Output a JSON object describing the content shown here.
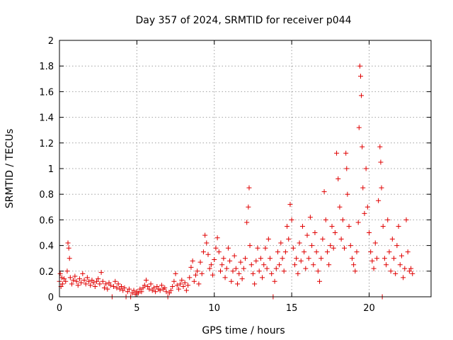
{
  "chart_data": {
    "type": "scatter",
    "title": "Day 357 of 2024, SRMTID for receiver p044",
    "xlabel": "GPS time / hours",
    "ylabel": "SRMTID / TECUs",
    "xlim": [
      0,
      24
    ],
    "ylim": [
      0,
      2
    ],
    "xticks": [
      0,
      5,
      10,
      15,
      20
    ],
    "xtick_labels": [
      "0",
      "5",
      "10",
      "15",
      "20"
    ],
    "yticks": [
      0,
      0.2,
      0.4,
      0.6,
      0.8,
      1,
      1.2,
      1.4,
      1.6,
      1.8,
      2
    ],
    "ytick_labels": [
      "0",
      "0.2",
      "0.4",
      "0.6",
      "0.8",
      "1",
      "1.2",
      "1.4",
      "1.6",
      "1.8",
      "2"
    ],
    "grid": true,
    "marker": "+",
    "color": "#e00000",
    "series": [
      {
        "name": "SRMTID",
        "points": [
          [
            0.0,
            0.12
          ],
          [
            0.05,
            0.18
          ],
          [
            0.1,
            0.08
          ],
          [
            0.15,
            0.15
          ],
          [
            0.2,
            0.1
          ],
          [
            0.3,
            0.14
          ],
          [
            0.4,
            0.12
          ],
          [
            0.5,
            0.2
          ],
          [
            0.55,
            0.42
          ],
          [
            0.6,
            0.38
          ],
          [
            0.65,
            0.3
          ],
          [
            0.7,
            0.15
          ],
          [
            0.8,
            0.1
          ],
          [
            0.9,
            0.13
          ],
          [
            1.0,
            0.16
          ],
          [
            1.1,
            0.12
          ],
          [
            1.2,
            0.09
          ],
          [
            1.3,
            0.14
          ],
          [
            1.4,
            0.11
          ],
          [
            1.5,
            0.18
          ],
          [
            1.6,
            0.13
          ],
          [
            1.7,
            0.1
          ],
          [
            1.8,
            0.15
          ],
          [
            1.9,
            0.12
          ],
          [
            2.0,
            0.09
          ],
          [
            2.1,
            0.13
          ],
          [
            2.2,
            0.11
          ],
          [
            2.3,
            0.08
          ],
          [
            2.4,
            0.12
          ],
          [
            2.5,
            0.14
          ],
          [
            2.6,
            0.1
          ],
          [
            2.7,
            0.19
          ],
          [
            2.8,
            0.12
          ],
          [
            2.9,
            0.07
          ],
          [
            3.0,
            0.1
          ],
          [
            3.1,
            0.06
          ],
          [
            3.2,
            0.11
          ],
          [
            3.3,
            0.09
          ],
          [
            3.4,
            0.0
          ],
          [
            3.5,
            0.08
          ],
          [
            3.6,
            0.12
          ],
          [
            3.7,
            0.07
          ],
          [
            3.8,
            0.1
          ],
          [
            3.9,
            0.06
          ],
          [
            4.0,
            0.08
          ],
          [
            4.1,
            0.05
          ],
          [
            4.2,
            0.07
          ],
          [
            4.3,
            0.0
          ],
          [
            4.4,
            0.04
          ],
          [
            4.5,
            0.06
          ],
          [
            4.6,
            0.0
          ],
          [
            4.7,
            0.03
          ],
          [
            4.8,
            0.05
          ],
          [
            4.9,
            0.02
          ],
          [
            5.0,
            0.04
          ],
          [
            5.1,
            0.03
          ],
          [
            5.2,
            0.06
          ],
          [
            5.3,
            0.04
          ],
          [
            5.4,
            0.07
          ],
          [
            5.5,
            0.09
          ],
          [
            5.6,
            0.13
          ],
          [
            5.7,
            0.08
          ],
          [
            5.8,
            0.06
          ],
          [
            5.9,
            0.1
          ],
          [
            6.0,
            0.05
          ],
          [
            6.1,
            0.07
          ],
          [
            6.2,
            0.04
          ],
          [
            6.3,
            0.08
          ],
          [
            6.4,
            0.06
          ],
          [
            6.5,
            0.05
          ],
          [
            6.6,
            0.09
          ],
          [
            6.7,
            0.06
          ],
          [
            6.8,
            0.07
          ],
          [
            6.9,
            0.04
          ],
          [
            7.0,
            0.0
          ],
          [
            7.1,
            0.03
          ],
          [
            7.2,
            0.05
          ],
          [
            7.3,
            0.08
          ],
          [
            7.4,
            0.12
          ],
          [
            7.5,
            0.18
          ],
          [
            7.6,
            0.09
          ],
          [
            7.7,
            0.06
          ],
          [
            7.8,
            0.1
          ],
          [
            7.9,
            0.13
          ],
          [
            8.0,
            0.08
          ],
          [
            8.1,
            0.11
          ],
          [
            8.2,
            0.05
          ],
          [
            8.3,
            0.09
          ],
          [
            8.4,
            0.15
          ],
          [
            8.5,
            0.23
          ],
          [
            8.6,
            0.28
          ],
          [
            8.7,
            0.12
          ],
          [
            8.8,
            0.17
          ],
          [
            8.9,
            0.2
          ],
          [
            9.0,
            0.1
          ],
          [
            9.1,
            0.27
          ],
          [
            9.2,
            0.18
          ],
          [
            9.3,
            0.35
          ],
          [
            9.4,
            0.48
          ],
          [
            9.5,
            0.42
          ],
          [
            9.6,
            0.33
          ],
          [
            9.7,
            0.22
          ],
          [
            9.8,
            0.25
          ],
          [
            9.9,
            0.17
          ],
          [
            10.0,
            0.29
          ],
          [
            10.1,
            0.38
          ],
          [
            10.2,
            0.46
          ],
          [
            10.3,
            0.35
          ],
          [
            10.4,
            0.2
          ],
          [
            10.5,
            0.25
          ],
          [
            10.6,
            0.3
          ],
          [
            10.7,
            0.15
          ],
          [
            10.8,
            0.22
          ],
          [
            10.9,
            0.38
          ],
          [
            11.0,
            0.28
          ],
          [
            11.1,
            0.12
          ],
          [
            11.2,
            0.2
          ],
          [
            11.3,
            0.32
          ],
          [
            11.4,
            0.22
          ],
          [
            11.5,
            0.1
          ],
          [
            11.6,
            0.18
          ],
          [
            11.7,
            0.27
          ],
          [
            11.8,
            0.14
          ],
          [
            11.9,
            0.22
          ],
          [
            12.0,
            0.3
          ],
          [
            12.1,
            0.58
          ],
          [
            12.2,
            0.7
          ],
          [
            12.25,
            0.85
          ],
          [
            12.3,
            0.4
          ],
          [
            12.4,
            0.25
          ],
          [
            12.5,
            0.18
          ],
          [
            12.6,
            0.1
          ],
          [
            12.7,
            0.28
          ],
          [
            12.8,
            0.38
          ],
          [
            12.9,
            0.2
          ],
          [
            13.0,
            0.3
          ],
          [
            13.1,
            0.15
          ],
          [
            13.2,
            0.25
          ],
          [
            13.3,
            0.38
          ],
          [
            13.4,
            0.22
          ],
          [
            13.5,
            0.45
          ],
          [
            13.6,
            0.3
          ],
          [
            13.7,
            0.18
          ],
          [
            13.8,
            0.0
          ],
          [
            13.9,
            0.12
          ],
          [
            14.0,
            0.22
          ],
          [
            14.1,
            0.35
          ],
          [
            14.2,
            0.25
          ],
          [
            14.3,
            0.42
          ],
          [
            14.4,
            0.3
          ],
          [
            14.5,
            0.2
          ],
          [
            14.6,
            0.35
          ],
          [
            14.7,
            0.55
          ],
          [
            14.8,
            0.45
          ],
          [
            14.9,
            0.72
          ],
          [
            15.0,
            0.6
          ],
          [
            15.1,
            0.38
          ],
          [
            15.2,
            0.25
          ],
          [
            15.3,
            0.3
          ],
          [
            15.4,
            0.18
          ],
          [
            15.5,
            0.42
          ],
          [
            15.6,
            0.28
          ],
          [
            15.7,
            0.55
          ],
          [
            15.8,
            0.35
          ],
          [
            15.9,
            0.22
          ],
          [
            16.0,
            0.48
          ],
          [
            16.1,
            0.3
          ],
          [
            16.2,
            0.62
          ],
          [
            16.3,
            0.4
          ],
          [
            16.4,
            0.25
          ],
          [
            16.5,
            0.5
          ],
          [
            16.6,
            0.35
          ],
          [
            16.7,
            0.2
          ],
          [
            16.8,
            0.12
          ],
          [
            16.9,
            0.3
          ],
          [
            17.0,
            0.45
          ],
          [
            17.1,
            0.82
          ],
          [
            17.2,
            0.6
          ],
          [
            17.3,
            0.35
          ],
          [
            17.4,
            0.25
          ],
          [
            17.5,
            0.4
          ],
          [
            17.6,
            0.55
          ],
          [
            17.7,
            0.38
          ],
          [
            17.8,
            0.5
          ],
          [
            17.9,
            1.12
          ],
          [
            18.0,
            0.92
          ],
          [
            18.1,
            0.7
          ],
          [
            18.2,
            0.45
          ],
          [
            18.3,
            0.6
          ],
          [
            18.4,
            0.38
          ],
          [
            18.5,
            1.12
          ],
          [
            18.55,
            1.0
          ],
          [
            18.6,
            0.8
          ],
          [
            18.7,
            0.55
          ],
          [
            18.8,
            0.4
          ],
          [
            18.9,
            0.3
          ],
          [
            19.0,
            0.25
          ],
          [
            19.1,
            0.2
          ],
          [
            19.2,
            0.35
          ],
          [
            19.3,
            0.58
          ],
          [
            19.35,
            1.32
          ],
          [
            19.4,
            1.8
          ],
          [
            19.45,
            1.72
          ],
          [
            19.5,
            1.57
          ],
          [
            19.55,
            1.17
          ],
          [
            19.6,
            0.85
          ],
          [
            19.7,
            0.65
          ],
          [
            19.8,
            1.0
          ],
          [
            19.9,
            0.7
          ],
          [
            20.0,
            0.5
          ],
          [
            20.1,
            0.35
          ],
          [
            20.2,
            0.28
          ],
          [
            20.3,
            0.22
          ],
          [
            20.4,
            0.42
          ],
          [
            20.5,
            0.3
          ],
          [
            20.6,
            0.75
          ],
          [
            20.7,
            1.17
          ],
          [
            20.75,
            1.05
          ],
          [
            20.8,
            0.85
          ],
          [
            20.85,
            0.0
          ],
          [
            20.9,
            0.55
          ],
          [
            21.0,
            0.3
          ],
          [
            21.1,
            0.25
          ],
          [
            21.2,
            0.6
          ],
          [
            21.3,
            0.35
          ],
          [
            21.4,
            0.2
          ],
          [
            21.5,
            0.45
          ],
          [
            21.6,
            0.3
          ],
          [
            21.7,
            0.18
          ],
          [
            21.8,
            0.4
          ],
          [
            21.9,
            0.55
          ],
          [
            22.0,
            0.25
          ],
          [
            22.1,
            0.32
          ],
          [
            22.2,
            0.15
          ],
          [
            22.3,
            0.22
          ],
          [
            22.4,
            0.6
          ],
          [
            22.5,
            0.35
          ],
          [
            22.6,
            0.2
          ],
          [
            22.7,
            0.22
          ],
          [
            22.8,
            0.18
          ]
        ]
      }
    ]
  }
}
